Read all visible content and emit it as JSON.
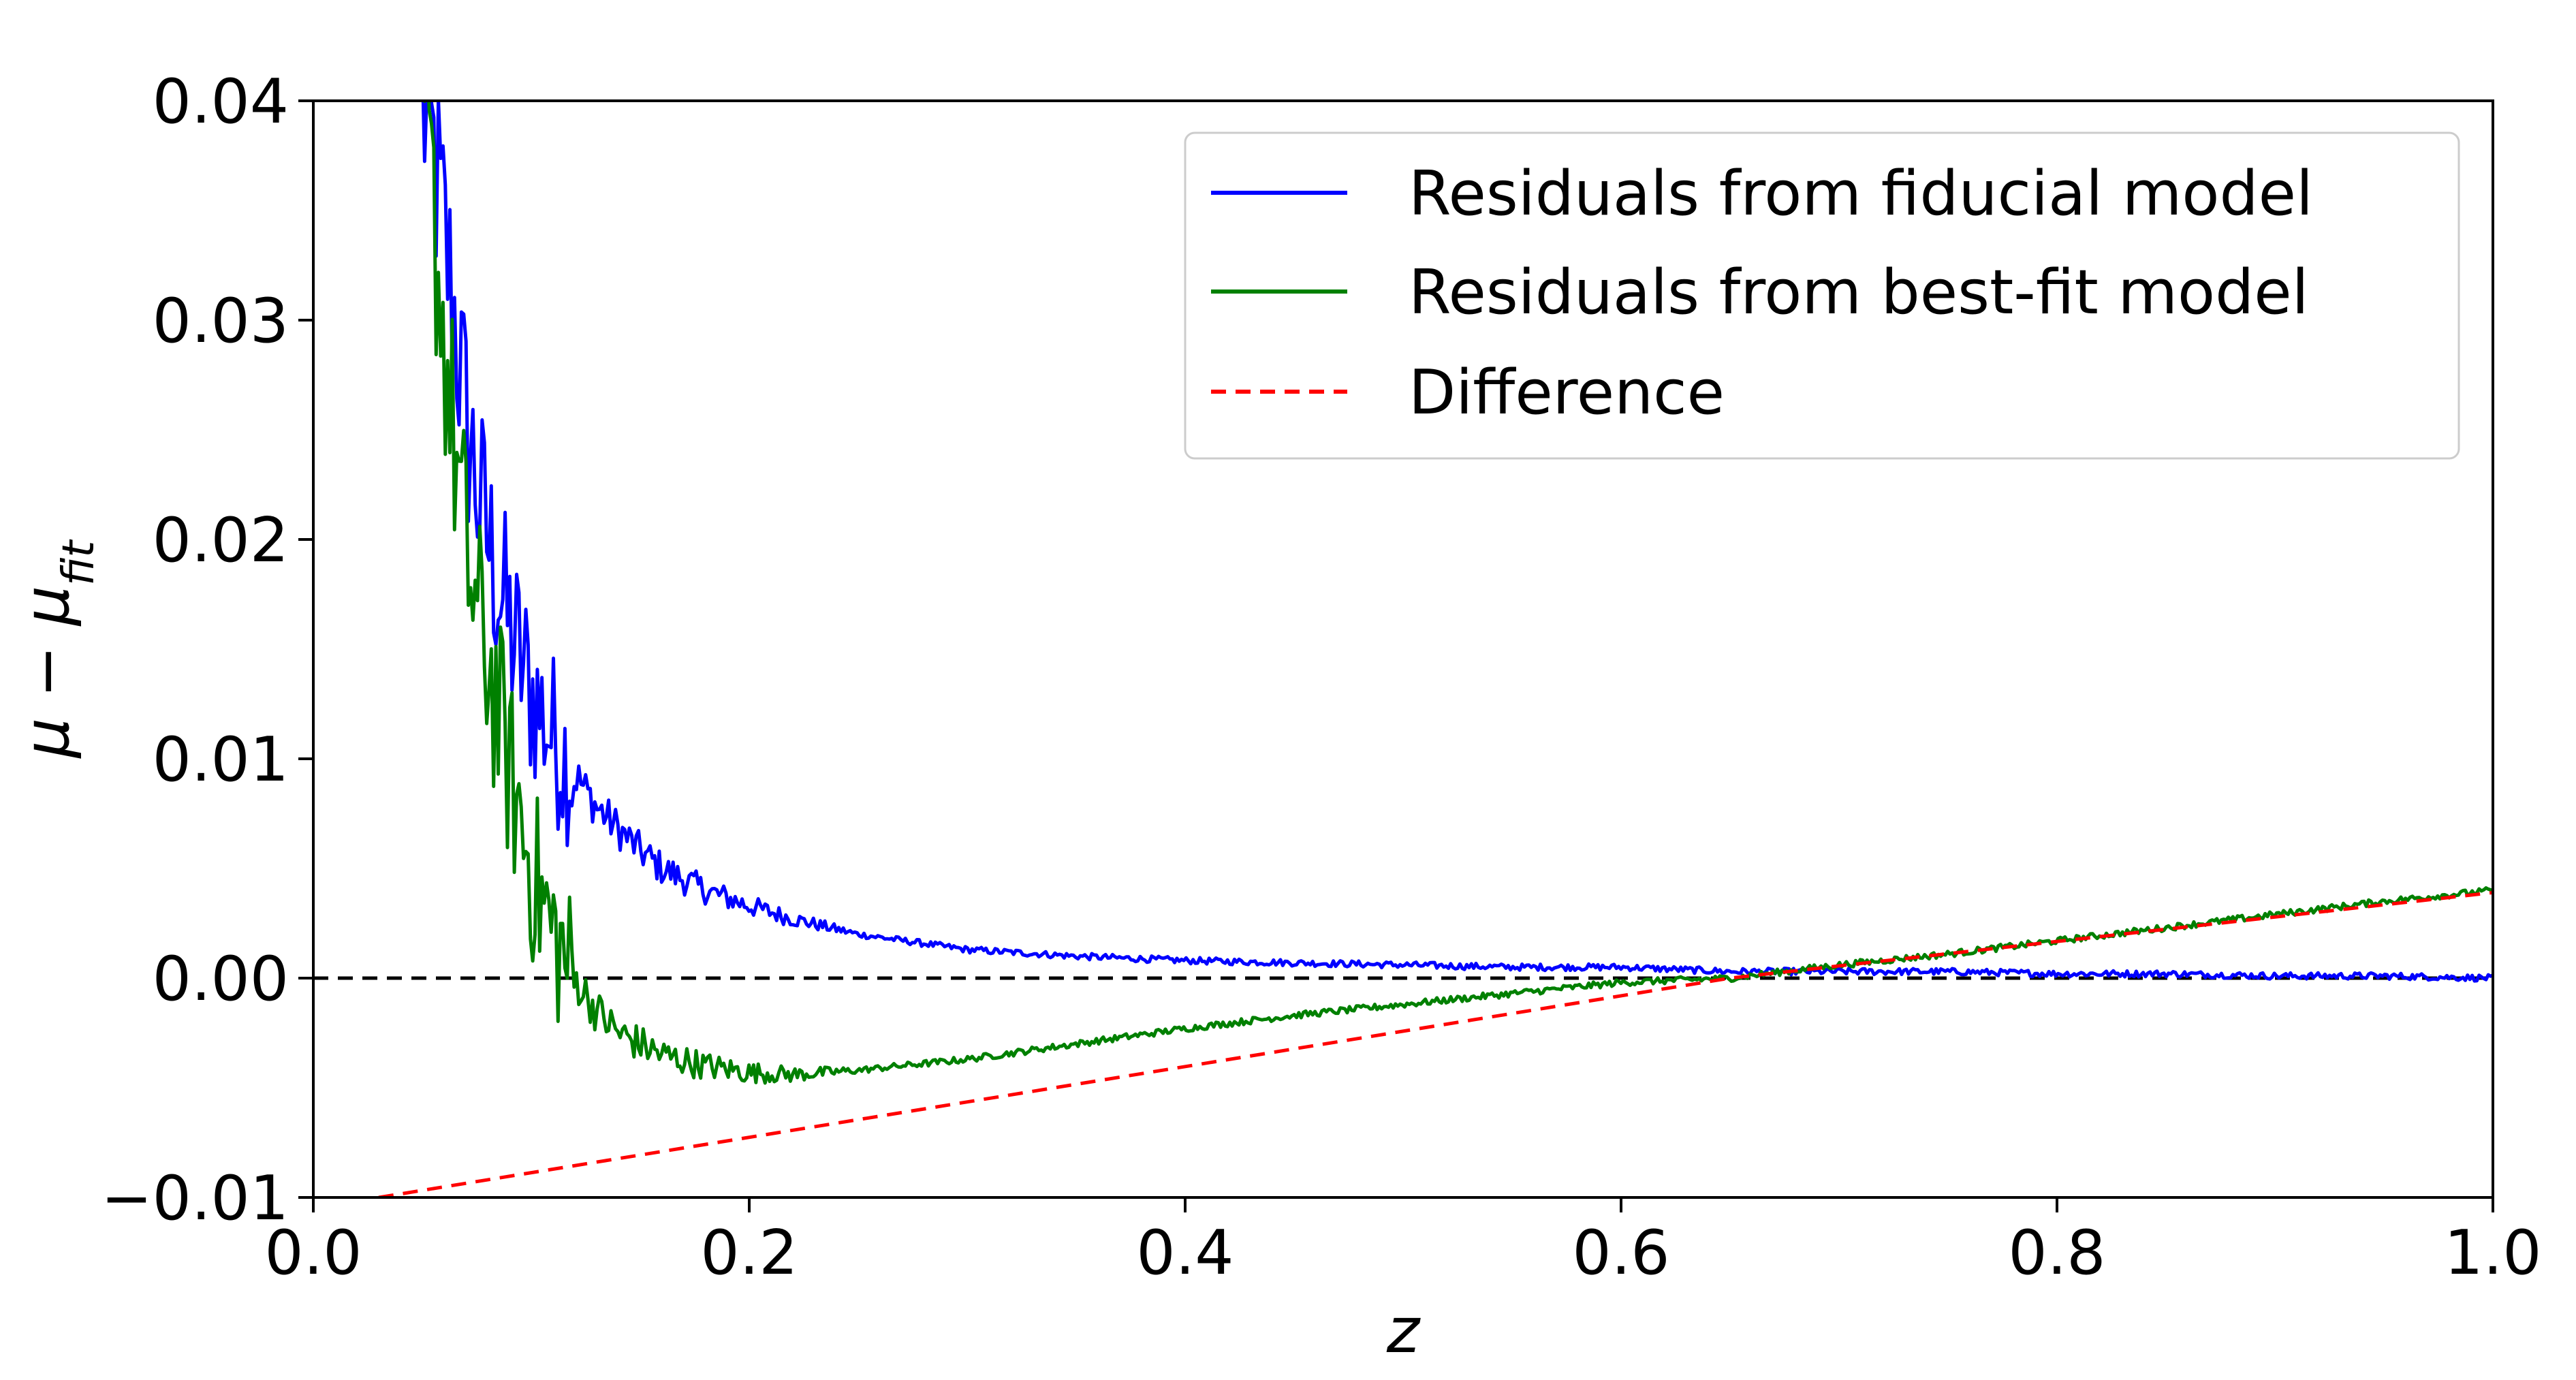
{
  "chart_data": {
    "type": "line",
    "title": "",
    "xlabel": "z",
    "ylabel": "μ − μ_fit",
    "ylabel_main": "μ − μ",
    "ylabel_sub": "fit",
    "xlim": [
      0.0,
      1.0
    ],
    "ylim": [
      -0.01,
      0.04
    ],
    "x_ticks": [
      "0.0",
      "0.2",
      "0.4",
      "0.6",
      "0.8",
      "1.0"
    ],
    "y_ticks": [
      "−0.01",
      "0.00",
      "0.01",
      "0.02",
      "0.03",
      "0.04"
    ],
    "x_tick_values": [
      0.0,
      0.2,
      0.4,
      0.6,
      0.8,
      1.0
    ],
    "y_tick_values": [
      -0.01,
      0.0,
      0.01,
      0.02,
      0.03,
      0.04
    ],
    "grid": false,
    "legend_position": "top-right",
    "reference_line": {
      "y": 0.0,
      "color": "#000000",
      "style": "dashed"
    },
    "series": [
      {
        "name": "Residuals from fiducial model",
        "color": "#0000ff",
        "style": "solid",
        "noisy": true,
        "x": [
          0.05,
          0.055,
          0.06,
          0.065,
          0.07,
          0.075,
          0.08,
          0.09,
          0.1,
          0.11,
          0.12,
          0.13,
          0.14,
          0.15,
          0.16,
          0.18,
          0.2,
          0.22,
          0.25,
          0.3,
          0.35,
          0.4,
          0.45,
          0.5,
          0.55,
          0.6,
          0.65,
          0.7,
          0.75,
          0.8,
          0.85,
          0.9,
          0.95,
          1.0
        ],
        "y": [
          0.04,
          0.0375,
          0.034,
          0.03,
          0.0255,
          0.0225,
          0.02,
          0.016,
          0.013,
          0.011,
          0.0093,
          0.0078,
          0.0068,
          0.0058,
          0.005,
          0.004,
          0.0033,
          0.0027,
          0.002,
          0.0013,
          0.001,
          0.0008,
          0.0007,
          0.0006,
          0.0005,
          0.0005,
          0.0003,
          0.0003,
          0.0003,
          0.0002,
          0.0002,
          0.0001,
          0.0001,
          0.0
        ]
      },
      {
        "name": "Residuals from best-fit model",
        "color": "#008000",
        "style": "solid",
        "noisy": true,
        "x": [
          0.05,
          0.055,
          0.06,
          0.065,
          0.07,
          0.075,
          0.08,
          0.09,
          0.1,
          0.11,
          0.12,
          0.13,
          0.14,
          0.15,
          0.16,
          0.18,
          0.2,
          0.22,
          0.25,
          0.3,
          0.35,
          0.4,
          0.45,
          0.5,
          0.55,
          0.6,
          0.65,
          0.7,
          0.75,
          0.8,
          0.85,
          0.9,
          0.95,
          1.0
        ],
        "y": [
          0.04,
          0.035,
          0.029,
          0.024,
          0.0195,
          0.0165,
          0.0145,
          0.0095,
          0.005,
          0.002,
          0.0,
          -0.0015,
          -0.0025,
          -0.003,
          -0.0035,
          -0.004,
          -0.0043,
          -0.0044,
          -0.0042,
          -0.0037,
          -0.003,
          -0.0023,
          -0.0017,
          -0.0012,
          -0.0007,
          -0.0002,
          0.0,
          0.0006,
          0.0011,
          0.0017,
          0.0023,
          0.0029,
          0.0035,
          0.004
        ]
      },
      {
        "name": "Difference",
        "color": "#ff0000",
        "style": "dashed",
        "noisy": false,
        "x": [
          0.03,
          0.65,
          1.0
        ],
        "y": [
          -0.01,
          0.0,
          0.0039
        ]
      }
    ]
  }
}
